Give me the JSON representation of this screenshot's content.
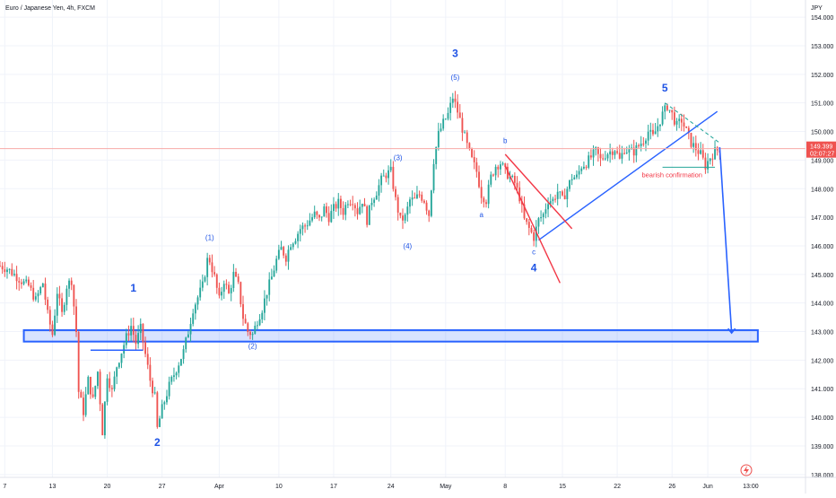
{
  "header": {
    "title": "Euro / Japanese Yen, 4h, FXCM"
  },
  "colors": {
    "up": "#26a69a",
    "down": "#ef5350",
    "wave": "#2962ff",
    "annotation": "#1e53e5",
    "red_line": "#f23645",
    "grid": "#f0f3fa",
    "price_line": "#f7a9a7"
  },
  "price_axis": {
    "currency": "JPY",
    "last_price": "149.399",
    "countdown": "02:07:27"
  },
  "chart_data": {
    "type": "candlestick",
    "title": "Euro / Japanese Yen, 4h, FXCM",
    "ylabel": "JPY",
    "ylim": [
      137.9,
      154.6
    ],
    "xlim_bars": [
      0,
      338
    ],
    "y_ticks": [
      "154.000",
      "153.000",
      "152.000",
      "151.000",
      "150.000",
      "149.000",
      "148.000",
      "147.000",
      "146.000",
      "145.000",
      "144.000",
      "143.000",
      "142.000",
      "141.000",
      "140.000",
      "139.000",
      "138.000"
    ],
    "x_ticks": [
      {
        "label": "7",
        "bar": 2
      },
      {
        "label": "13",
        "bar": 22
      },
      {
        "label": "20",
        "bar": 45
      },
      {
        "label": "27",
        "bar": 68
      },
      {
        "label": "Apr",
        "bar": 92
      },
      {
        "label": "10",
        "bar": 117
      },
      {
        "label": "17",
        "bar": 140
      },
      {
        "label": "24",
        "bar": 164
      },
      {
        "label": "May",
        "bar": 187
      },
      {
        "label": "8",
        "bar": 212
      },
      {
        "label": "15",
        "bar": 236
      },
      {
        "label": "22",
        "bar": 259
      },
      {
        "label": "26",
        "bar": 282
      },
      {
        "label": "Jun",
        "bar": 297
      },
      {
        "label": "13:00",
        "bar": 315
      }
    ],
    "close_path": [
      [
        0,
        145.3
      ],
      [
        3,
        145.2
      ],
      [
        6,
        145.0
      ],
      [
        10,
        144.7
      ],
      [
        12,
        144.6
      ],
      [
        15,
        144.1
      ],
      [
        18,
        144.7
      ],
      [
        20,
        143.6
      ],
      [
        22,
        142.9
      ],
      [
        24,
        144.4
      ],
      [
        26,
        143.6
      ],
      [
        28,
        144.6
      ],
      [
        30,
        144.8
      ],
      [
        32,
        143.0
      ],
      [
        33,
        140.9
      ],
      [
        35,
        140.2
      ],
      [
        37,
        141.3
      ],
      [
        39,
        140.6
      ],
      [
        41,
        141.6
      ],
      [
        43,
        139.5
      ],
      [
        45,
        141.5
      ],
      [
        47,
        140.9
      ],
      [
        49,
        141.8
      ],
      [
        51,
        142.3
      ],
      [
        53,
        142.8
      ],
      [
        55,
        143.2
      ],
      [
        57,
        142.6
      ],
      [
        59,
        143.1
      ],
      [
        61,
        142.2
      ],
      [
        63,
        141.3
      ],
      [
        65,
        140.7
      ],
      [
        66,
        139.6
      ],
      [
        68,
        140.3
      ],
      [
        71,
        141.1
      ],
      [
        74,
        141.7
      ],
      [
        77,
        142.3
      ],
      [
        79,
        143.0
      ],
      [
        81,
        143.8
      ],
      [
        83,
        144.2
      ],
      [
        85,
        144.6
      ],
      [
        87,
        145.5
      ],
      [
        88,
        145.5
      ],
      [
        90,
        144.9
      ],
      [
        92,
        144.1
      ],
      [
        94,
        144.8
      ],
      [
        96,
        144.3
      ],
      [
        98,
        145.0
      ],
      [
        100,
        144.6
      ],
      [
        102,
        143.5
      ],
      [
        104,
        143.0
      ],
      [
        106,
        142.9
      ],
      [
        108,
        143.4
      ],
      [
        110,
        143.8
      ],
      [
        112,
        144.4
      ],
      [
        114,
        144.9
      ],
      [
        116,
        145.5
      ],
      [
        118,
        145.9
      ],
      [
        120,
        145.6
      ],
      [
        122,
        146.1
      ],
      [
        124,
        146.3
      ],
      [
        126,
        146.6
      ],
      [
        128,
        146.7
      ],
      [
        130,
        146.9
      ],
      [
        132,
        147.1
      ],
      [
        134,
        146.9
      ],
      [
        136,
        147.3
      ],
      [
        138,
        147.0
      ],
      [
        140,
        147.3
      ],
      [
        142,
        147.5
      ],
      [
        144,
        147.2
      ],
      [
        146,
        147.6
      ],
      [
        148,
        147.6
      ],
      [
        150,
        147.2
      ],
      [
        152,
        147.6
      ],
      [
        154,
        146.9
      ],
      [
        156,
        147.6
      ],
      [
        158,
        147.9
      ],
      [
        160,
        148.3
      ],
      [
        162,
        148.5
      ],
      [
        164,
        148.6
      ],
      [
        166,
        147.6
      ],
      [
        168,
        146.9
      ],
      [
        170,
        147.0
      ],
      [
        172,
        147.6
      ],
      [
        174,
        147.6
      ],
      [
        176,
        147.8
      ],
      [
        178,
        147.6
      ],
      [
        180,
        147.1
      ],
      [
        182,
        149.0
      ],
      [
        184,
        149.9
      ],
      [
        186,
        150.3
      ],
      [
        188,
        150.6
      ],
      [
        190,
        151.2
      ],
      [
        192,
        150.7
      ],
      [
        194,
        150.1
      ],
      [
        196,
        149.5
      ],
      [
        198,
        149.0
      ],
      [
        200,
        148.6
      ],
      [
        202,
        147.8
      ],
      [
        204,
        147.6
      ],
      [
        206,
        148.4
      ],
      [
        208,
        148.8
      ],
      [
        210,
        148.9
      ],
      [
        212,
        148.6
      ],
      [
        214,
        148.4
      ],
      [
        216,
        148.2
      ],
      [
        218,
        147.7
      ],
      [
        220,
        146.9
      ],
      [
        222,
        146.6
      ],
      [
        224,
        146.3
      ],
      [
        226,
        146.9
      ],
      [
        228,
        147.1
      ],
      [
        230,
        147.6
      ],
      [
        232,
        147.6
      ],
      [
        234,
        147.9
      ],
      [
        236,
        147.6
      ],
      [
        238,
        148.0
      ],
      [
        240,
        148.4
      ],
      [
        242,
        148.4
      ],
      [
        244,
        148.8
      ],
      [
        246,
        148.9
      ],
      [
        248,
        149.1
      ],
      [
        250,
        149.3
      ],
      [
        252,
        149.0
      ],
      [
        254,
        149.2
      ],
      [
        256,
        149.3
      ],
      [
        258,
        149.4
      ],
      [
        260,
        149.0
      ],
      [
        262,
        149.4
      ],
      [
        264,
        149.3
      ],
      [
        266,
        149.3
      ],
      [
        268,
        149.5
      ],
      [
        270,
        149.7
      ],
      [
        272,
        150.0
      ],
      [
        274,
        149.8
      ],
      [
        276,
        150.2
      ],
      [
        278,
        150.6
      ],
      [
        280,
        150.9
      ],
      [
        282,
        150.6
      ],
      [
        284,
        150.2
      ],
      [
        286,
        150.4
      ],
      [
        288,
        150.0
      ],
      [
        290,
        149.6
      ],
      [
        292,
        149.4
      ],
      [
        294,
        149.2
      ],
      [
        296,
        148.8
      ],
      [
        298,
        149.1
      ],
      [
        300,
        149.3
      ],
      [
        302,
        149.4
      ]
    ],
    "projection": {
      "from": {
        "bar": 302,
        "price": 149.45
      },
      "to": {
        "bar": 307,
        "price": 142.95
      }
    },
    "support_zone": {
      "from_bar": 10,
      "to_bar": 318,
      "top": 143.05,
      "bottom": 142.65
    },
    "wave_labels": [
      {
        "text": "1",
        "bar": 56,
        "price": 144.4,
        "size": "large"
      },
      {
        "text": "2",
        "bar": 66,
        "price": 139.0,
        "size": "large"
      },
      {
        "text": "3",
        "bar": 191,
        "price": 152.6,
        "size": "large"
      },
      {
        "text": "4",
        "bar": 224,
        "price": 145.1,
        "size": "large"
      },
      {
        "text": "5",
        "bar": 279,
        "price": 151.4,
        "size": "large"
      },
      {
        "text": "(1)",
        "bar": 88,
        "price": 146.2,
        "size": "small"
      },
      {
        "text": "(2)",
        "bar": 106,
        "price": 142.4,
        "size": "small"
      },
      {
        "text": "(3)",
        "bar": 167,
        "price": 149.0,
        "size": "small"
      },
      {
        "text": "(4)",
        "bar": 171,
        "price": 145.9,
        "size": "small"
      },
      {
        "text": "(5)",
        "bar": 191,
        "price": 151.8,
        "size": "small"
      },
      {
        "text": "a",
        "bar": 202,
        "price": 147.0,
        "size": "small"
      },
      {
        "text": "b",
        "bar": 212,
        "price": 149.6,
        "size": "small"
      },
      {
        "text": "c",
        "bar": 224,
        "price": 145.7,
        "size": "small"
      }
    ],
    "trendlines": [
      {
        "name": "wave-4-support",
        "from": {
          "bar": 226,
          "price": 146.2
        },
        "to": {
          "bar": 301,
          "price": 150.7
        },
        "color": "wave"
      },
      {
        "name": "wave-1-level",
        "from": {
          "bar": 38,
          "price": 142.35
        },
        "to": {
          "bar": 60,
          "price": 142.35
        },
        "color": "wave"
      },
      {
        "name": "channel-upper",
        "from": {
          "bar": 212,
          "price": 149.2
        },
        "to": {
          "bar": 240,
          "price": 146.6
        },
        "color": "red_line"
      },
      {
        "name": "channel-lower",
        "from": {
          "bar": 212,
          "price": 148.8
        },
        "to": {
          "bar": 235,
          "price": 144.7
        },
        "color": "red_line"
      }
    ],
    "annotations": [
      {
        "text": "bearish confirmation",
        "bar": 282,
        "price": 148.4
      }
    ]
  }
}
